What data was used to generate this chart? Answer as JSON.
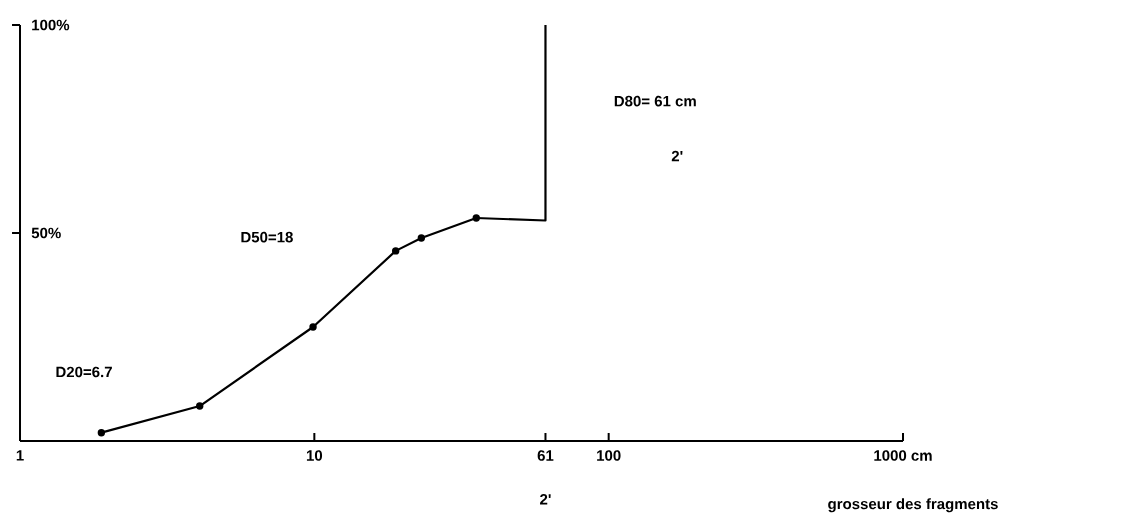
{
  "chart_data": {
    "type": "line",
    "xlabel": "grosseur des fragments",
    "log": "x",
    "xlim": [
      1,
      1000
    ],
    "ylim": [
      0,
      100
    ],
    "xticks": [
      1,
      10,
      61,
      100,
      {
        "value": 1000,
        "label": "1000 cm"
      }
    ],
    "yticks": [
      {
        "value": 50,
        "label": "50%"
      },
      {
        "value": 100,
        "label": "100%"
      }
    ],
    "series": [
      {
        "color": "#000000",
        "marker": "circle",
        "x": [
          1.89,
          4.08,
          9.9,
          18.9,
          23.1,
          35.5
        ],
        "values": [
          2,
          8.4,
          27.4,
          45.7,
          48.8,
          53.6
        ]
      },
      {
        "color": "#000000",
        "marker": "none",
        "x": [
          35.5,
          61,
          61
        ],
        "values": [
          53.6,
          53,
          100
        ]
      }
    ],
    "annotations": [
      "D20=6.7",
      "D50=18",
      "D80= 61 cm",
      "2'",
      "2'"
    ]
  }
}
